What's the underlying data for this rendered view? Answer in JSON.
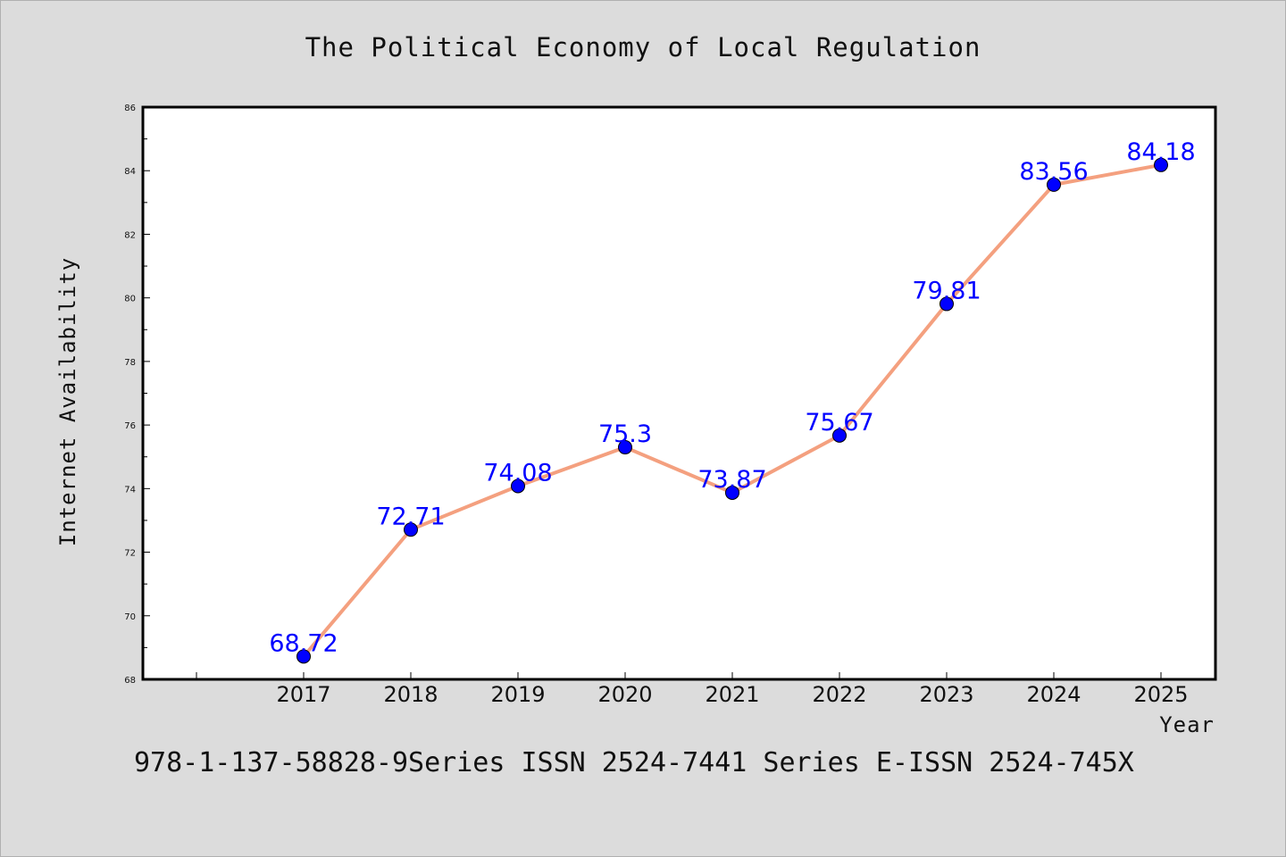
{
  "chart_data": {
    "type": "line",
    "title": "The Political Economy of Local Regulation",
    "xlabel": "Year",
    "ylabel": "Internet Availability",
    "categories": [
      "2017",
      "2018",
      "2019",
      "2020",
      "2021",
      "2022",
      "2023",
      "2024",
      "2025"
    ],
    "series": [
      {
        "values": [
          68.72,
          72.71,
          74.08,
          75.3,
          73.87,
          75.67,
          79.81,
          83.56,
          84.18
        ],
        "labels": [
          "68.72",
          "72.71",
          "74.08",
          "75.3",
          "73.87",
          "75.67",
          "79.81",
          "83.56",
          "84.18"
        ],
        "line_color": "#f4a07f",
        "marker_color": "#0000ff"
      }
    ],
    "ylim": [
      68,
      86
    ],
    "y_ticks": [
      "68",
      "70",
      "72",
      "74",
      "76",
      "78",
      "80",
      "82",
      "84",
      "86"
    ],
    "grid": false,
    "legend": "none"
  },
  "footer": {
    "text": "978-1-137-58828-9Series ISSN 2524-7441 Series E-ISSN 2524-745X"
  }
}
